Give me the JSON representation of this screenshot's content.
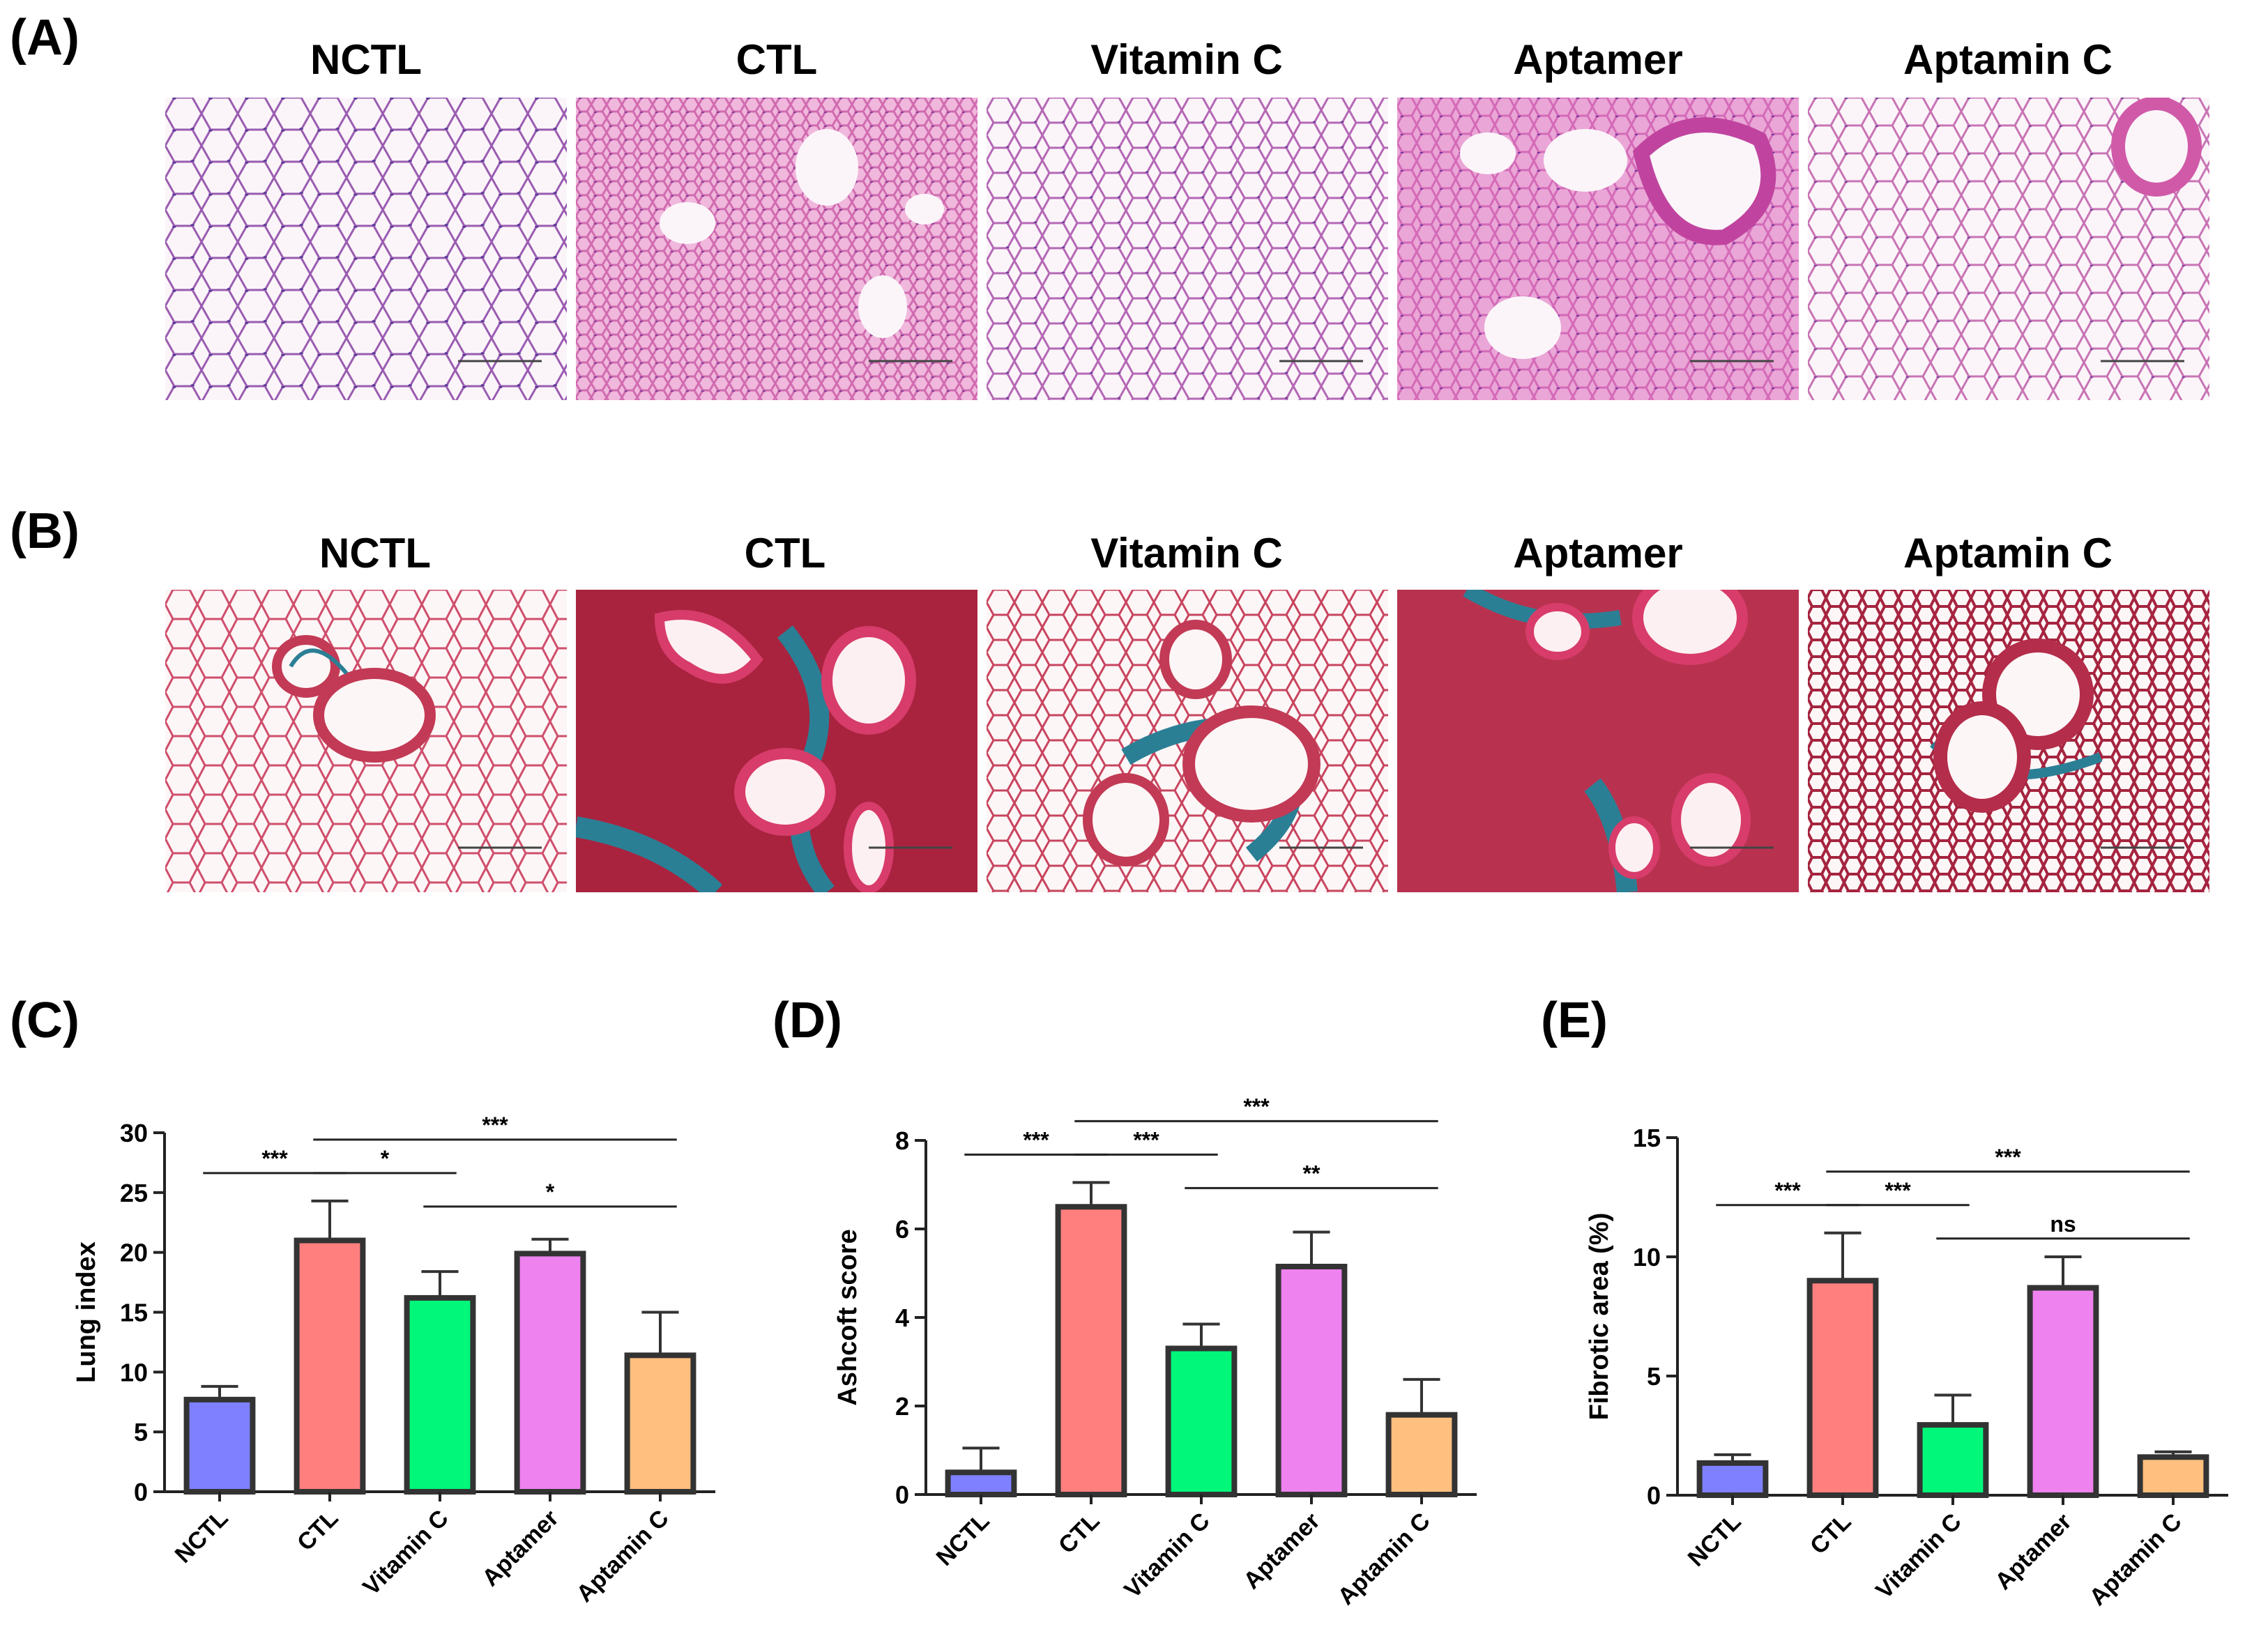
{
  "panels": {
    "a": {
      "letter": "(A)",
      "titles": [
        "NCTL",
        "CTL",
        "Vitamin C",
        "Aptamer",
        "Aptamin C"
      ]
    },
    "b": {
      "letter": "(B)",
      "titles": [
        "NCTL",
        "CTL",
        "Vitamin C",
        "Aptamer",
        "Aptamin C"
      ]
    },
    "c": {
      "letter": "(C)"
    },
    "d": {
      "letter": "(D)"
    },
    "e": {
      "letter": "(E)"
    }
  },
  "colors": {
    "he_background": "#fbf5fa",
    "he_tissue_purple": "#9a5cb0",
    "he_tissue_pink": "#e07cc0",
    "mt_tissue_red": "#c23a55",
    "mt_collagen_blue": "#2b7f95",
    "bar_outline": "#333333"
  },
  "chart_data": [
    {
      "type": "bar",
      "panel": "(C)",
      "categories": [
        "NCTL",
        "CTL",
        "Vitamin C",
        "Aptamer",
        "Aptamin C"
      ],
      "values": [
        7.7,
        21.0,
        16.2,
        19.9,
        11.4
      ],
      "errors": [
        1.1,
        3.3,
        2.2,
        1.2,
        3.6
      ],
      "colors": [
        "#7f80ff",
        "#ff7f7f",
        "#00f77a",
        "#ee82ee",
        "#ffbf7f"
      ],
      "ylabel": "Lung index",
      "ylim": [
        0,
        30
      ],
      "yticks": [
        0,
        5,
        10,
        15,
        20,
        25,
        30
      ],
      "significance": [
        {
          "from": 0,
          "to": 1,
          "label": "***",
          "level": 0
        },
        {
          "from": 1,
          "to": 2,
          "label": "*",
          "level": 0
        },
        {
          "from": 1,
          "to": 4,
          "label": "***",
          "level": 1
        },
        {
          "from": 2,
          "to": 4,
          "label": "*",
          "level": -1
        }
      ]
    },
    {
      "type": "bar",
      "panel": "(D)",
      "categories": [
        "NCTL",
        "CTL",
        "Vitamin C",
        "Aptamer",
        "Aptamin C"
      ],
      "values": [
        0.5,
        6.5,
        3.3,
        5.15,
        1.8
      ],
      "errors": [
        0.55,
        0.55,
        0.55,
        0.78,
        0.8
      ],
      "colors": [
        "#7f80ff",
        "#ff7f7f",
        "#00f77a",
        "#ee82ee",
        "#ffbf7f"
      ],
      "ylabel": "Ashcoft score",
      "ylim": [
        0,
        8
      ],
      "yticks": [
        0,
        2,
        4,
        6,
        8
      ],
      "significance": [
        {
          "from": 0,
          "to": 1,
          "label": "***",
          "level": 0
        },
        {
          "from": 1,
          "to": 2,
          "label": "***",
          "level": 0
        },
        {
          "from": 1,
          "to": 4,
          "label": "***",
          "level": 1
        },
        {
          "from": 2,
          "to": 4,
          "label": "**",
          "level": -1
        }
      ]
    },
    {
      "type": "bar",
      "panel": "(E)",
      "categories": [
        "NCTL",
        "CTL",
        "Vitamin C",
        "Aptamer",
        "Aptamin C"
      ],
      "values": [
        1.35,
        9.0,
        2.95,
        8.7,
        1.6
      ],
      "errors": [
        0.35,
        2.0,
        1.25,
        1.3,
        0.22
      ],
      "colors": [
        "#7f80ff",
        "#ff7f7f",
        "#00f77a",
        "#ee82ee",
        "#ffbf7f"
      ],
      "ylabel": "Fibrotic area (%)",
      "ylim": [
        0,
        15
      ],
      "yticks": [
        0,
        5,
        10,
        15
      ],
      "significance": [
        {
          "from": 0,
          "to": 1,
          "label": "***",
          "level": 0
        },
        {
          "from": 1,
          "to": 2,
          "label": "***",
          "level": 0
        },
        {
          "from": 1,
          "to": 4,
          "label": "***",
          "level": 1
        },
        {
          "from": 2,
          "to": 4,
          "label": "ns",
          "level": -1
        }
      ]
    }
  ]
}
